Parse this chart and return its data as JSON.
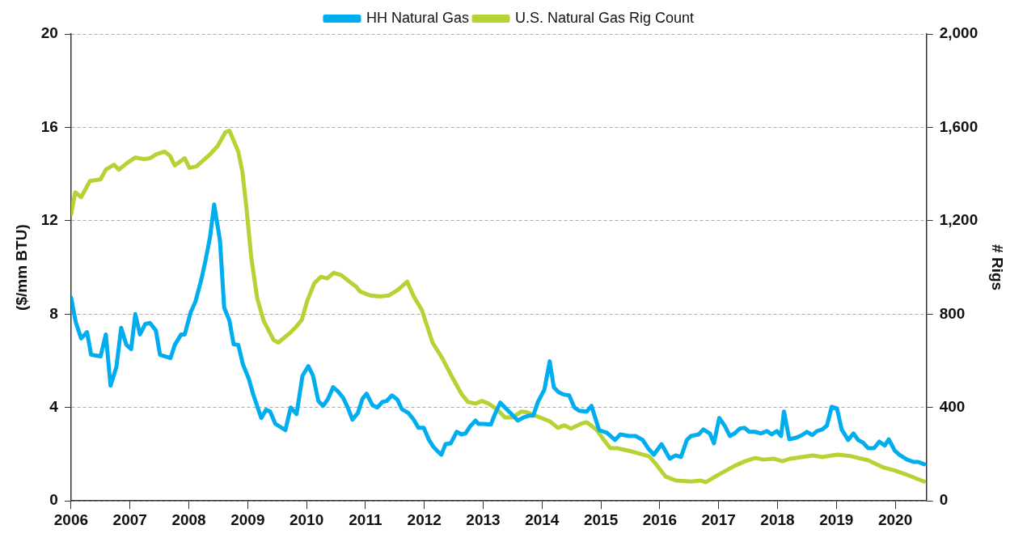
{
  "chart_data": {
    "type": "line",
    "ylabel": "($/mm BTU)",
    "y2label": "# Rigs",
    "legend": "top",
    "grid": "y",
    "line_style": "solid",
    "marker": "none",
    "xlim": [
      2006,
      2020.53
    ],
    "xticks": [
      2006,
      2007,
      2008,
      2009,
      2010,
      2011,
      2012,
      2013,
      2014,
      2015,
      2016,
      2017,
      2018,
      2019,
      2020
    ],
    "ylim": [
      0,
      20
    ],
    "yticks": [
      0,
      4,
      8,
      12,
      16,
      20
    ],
    "y2lim": [
      0,
      2000
    ],
    "y2ticks": [
      0,
      400,
      800,
      {
        "value": 1200,
        "label": "1,200"
      },
      {
        "value": 1600,
        "label": "1,600"
      },
      {
        "value": 2000,
        "label": "2,000"
      }
    ],
    "series": [
      {
        "name": "HH Natural Gas",
        "color": "#00aeef",
        "x": [
          2006.0,
          2006.08,
          2006.17,
          2006.27,
          2006.34,
          2006.5,
          2006.59,
          2006.67,
          2006.77,
          2006.85,
          2006.94,
          2007.02,
          2007.09,
          2007.17,
          2007.26,
          2007.34,
          2007.44,
          2007.51,
          2007.69,
          2007.76,
          2007.87,
          2007.93,
          2008.03,
          2008.11,
          2008.21,
          2008.28,
          2008.36,
          2008.43,
          2008.53,
          2008.6,
          2008.69,
          2008.76,
          2008.84,
          2008.92,
          2009.02,
          2009.09,
          2009.23,
          2009.31,
          2009.38,
          2009.47,
          2009.64,
          2009.73,
          2009.83,
          2009.93,
          2010.03,
          2010.11,
          2010.2,
          2010.28,
          2010.36,
          2010.45,
          2010.53,
          2010.62,
          2010.7,
          2010.78,
          2010.87,
          2010.95,
          2011.02,
          2011.12,
          2011.2,
          2011.29,
          2011.36,
          2011.45,
          2011.54,
          2011.62,
          2011.73,
          2011.82,
          2011.9,
          2011.99,
          2012.08,
          2012.15,
          2012.24,
          2012.29,
          2012.36,
          2012.45,
          2012.55,
          2012.63,
          2012.7,
          2012.78,
          2012.87,
          2012.92,
          2012.99,
          2013.13,
          2013.2,
          2013.29,
          2013.37,
          2013.48,
          2013.59,
          2013.69,
          2013.78,
          2013.85,
          2013.93,
          2014.04,
          2014.13,
          2014.2,
          2014.28,
          2014.36,
          2014.46,
          2014.55,
          2014.63,
          2014.76,
          2014.84,
          2014.97,
          2015.1,
          2015.24,
          2015.33,
          2015.48,
          2015.59,
          2015.71,
          2015.8,
          2015.9,
          2016.03,
          2016.17,
          2016.27,
          2016.36,
          2016.46,
          2016.53,
          2016.66,
          2016.74,
          2016.85,
          2016.92,
          2017.01,
          2017.1,
          2017.19,
          2017.27,
          2017.36,
          2017.44,
          2017.52,
          2017.62,
          2017.72,
          2017.82,
          2017.9,
          2017.99,
          2018.06,
          2018.11,
          2018.2,
          2018.32,
          2018.42,
          2018.5,
          2018.59,
          2018.67,
          2018.76,
          2018.84,
          2018.92,
          2019.01,
          2019.09,
          2019.2,
          2019.29,
          2019.37,
          2019.45,
          2019.54,
          2019.64,
          2019.73,
          2019.82,
          2019.89,
          2019.99,
          2020.07,
          2020.2,
          2020.31,
          2020.39,
          2020.49
        ],
        "values": [
          8.7,
          7.65,
          6.96,
          7.23,
          6.26,
          6.19,
          7.13,
          4.94,
          5.74,
          7.41,
          6.68,
          6.5,
          8.0,
          7.13,
          7.58,
          7.62,
          7.3,
          6.26,
          6.12,
          6.68,
          7.13,
          7.13,
          8.07,
          8.52,
          9.46,
          10.26,
          11.3,
          12.7,
          11.13,
          8.28,
          7.72,
          6.71,
          6.68,
          5.84,
          5.22,
          4.59,
          3.55,
          3.9,
          3.83,
          3.3,
          3.03,
          4.0,
          3.72,
          5.36,
          5.77,
          5.36,
          4.28,
          4.07,
          4.35,
          4.87,
          4.7,
          4.42,
          4.0,
          3.48,
          3.76,
          4.38,
          4.59,
          4.1,
          4.0,
          4.24,
          4.28,
          4.52,
          4.35,
          3.93,
          3.76,
          3.48,
          3.13,
          3.13,
          2.61,
          2.33,
          2.09,
          1.98,
          2.43,
          2.47,
          2.96,
          2.85,
          2.89,
          3.2,
          3.44,
          3.3,
          3.3,
          3.27,
          3.72,
          4.21,
          4.0,
          3.72,
          3.44,
          3.58,
          3.65,
          3.65,
          4.24,
          4.77,
          5.98,
          4.87,
          4.66,
          4.56,
          4.52,
          4.0,
          3.86,
          3.83,
          4.07,
          3.03,
          2.92,
          2.61,
          2.85,
          2.78,
          2.78,
          2.61,
          2.26,
          1.98,
          2.43,
          1.81,
          1.95,
          1.88,
          2.61,
          2.78,
          2.85,
          3.06,
          2.89,
          2.47,
          3.55,
          3.23,
          2.78,
          2.89,
          3.1,
          3.13,
          2.96,
          2.96,
          2.89,
          2.99,
          2.85,
          2.99,
          2.78,
          3.83,
          2.64,
          2.71,
          2.82,
          2.96,
          2.82,
          2.99,
          3.06,
          3.23,
          4.03,
          3.96,
          3.06,
          2.61,
          2.89,
          2.61,
          2.5,
          2.26,
          2.26,
          2.54,
          2.37,
          2.64,
          2.16,
          1.98,
          1.77,
          1.67,
          1.67,
          1.57
        ]
      },
      {
        "name": "U.S. Natural Gas Rig Count",
        "color": "#b5d334",
        "axis": "y2",
        "x": [
          2006.0,
          2006.07,
          2006.17,
          2006.32,
          2006.5,
          2006.59,
          2006.73,
          2006.81,
          2006.95,
          2007.09,
          2007.24,
          2007.34,
          2007.45,
          2007.59,
          2007.68,
          2007.76,
          2007.93,
          2008.01,
          2008.13,
          2008.35,
          2008.49,
          2008.62,
          2008.69,
          2008.84,
          2008.91,
          2008.98,
          2009.06,
          2009.16,
          2009.27,
          2009.44,
          2009.52,
          2009.72,
          2009.83,
          2009.92,
          2010.01,
          2010.13,
          2010.24,
          2010.35,
          2010.46,
          2010.59,
          2010.73,
          2010.84,
          2010.91,
          2011.08,
          2011.26,
          2011.4,
          2011.55,
          2011.71,
          2011.82,
          2011.96,
          2012.14,
          2012.31,
          2012.49,
          2012.63,
          2012.74,
          2012.87,
          2012.98,
          2013.09,
          2013.23,
          2013.37,
          2013.5,
          2013.65,
          2013.75,
          2013.85,
          2013.96,
          2014.13,
          2014.27,
          2014.38,
          2014.49,
          2014.66,
          2014.76,
          2014.92,
          2015.03,
          2015.16,
          2015.27,
          2015.52,
          2015.66,
          2015.82,
          2015.94,
          2016.1,
          2016.28,
          2016.53,
          2016.7,
          2016.78,
          2016.92,
          2017.09,
          2017.27,
          2017.45,
          2017.62,
          2017.76,
          2017.93,
          2018.08,
          2018.22,
          2018.41,
          2018.6,
          2018.76,
          2018.92,
          2019.03,
          2019.26,
          2019.54,
          2019.8,
          2019.97,
          2020.17,
          2020.35,
          2020.49
        ],
        "values": [
          1228,
          1322,
          1301,
          1370,
          1377,
          1419,
          1440,
          1419,
          1447,
          1471,
          1464,
          1468,
          1485,
          1496,
          1478,
          1437,
          1468,
          1426,
          1433,
          1482,
          1520,
          1579,
          1586,
          1496,
          1409,
          1252,
          1043,
          870,
          772,
          689,
          678,
          720,
          748,
          776,
          856,
          932,
          960,
          953,
          977,
          967,
          939,
          918,
          897,
          880,
          876,
          880,
          904,
          939,
          876,
          817,
          678,
          609,
          522,
          459,
          424,
          417,
          428,
          417,
          393,
          358,
          358,
          383,
          379,
          369,
          358,
          341,
          313,
          324,
          310,
          330,
          337,
          306,
          268,
          226,
          226,
          212,
          202,
          191,
          156,
          104,
          87,
          83,
          87,
          80,
          101,
          125,
          150,
          170,
          184,
          177,
          181,
          170,
          181,
          188,
          195,
          188,
          195,
          198,
          191,
          174,
          143,
          132,
          115,
          97,
          83
        ]
      }
    ]
  }
}
